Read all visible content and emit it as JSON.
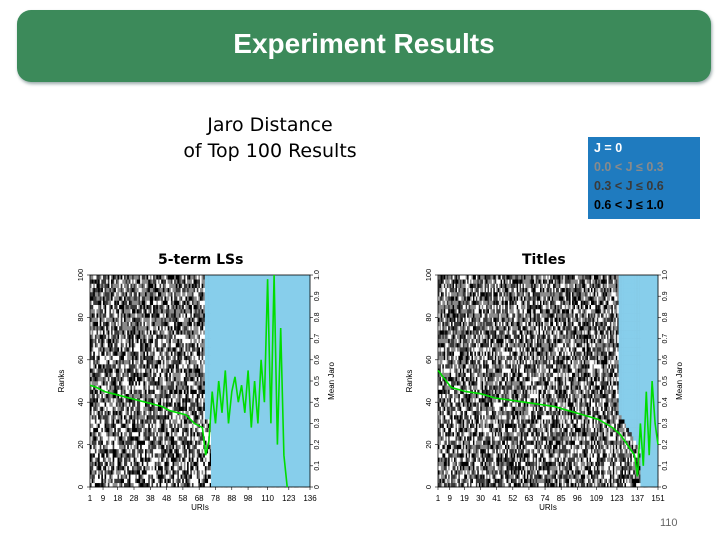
{
  "slide": {
    "title": "Experiment Results",
    "subtitle_line1": "Jaro Distance",
    "subtitle_line2": "of Top 100 Results",
    "page_number": "110"
  },
  "legend": {
    "items": [
      {
        "label": "J = 0",
        "color": "#ffffff"
      },
      {
        "label": "0.0 < J ≤ 0.3",
        "color": "#8a8a8a"
      },
      {
        "label": "0.3 < J ≤ 0.6",
        "color": "#3a3a3a"
      },
      {
        "label": "0.6 < J ≤ 1.0",
        "color": "#000000"
      }
    ],
    "background": "#1f7bbf"
  },
  "chart_data": [
    {
      "type": "heatmap",
      "title": "5-term LSs",
      "xlabel": "URIs",
      "ylabel": "Ranks",
      "y2label": "Mean Jaro",
      "x_ticks": [
        "1",
        "9",
        "18",
        "28",
        "38",
        "48",
        "58",
        "68",
        "78",
        "88",
        "98",
        "110",
        "123",
        "136"
      ],
      "y_ticks": [
        "0",
        "20",
        "40",
        "60",
        "80",
        "100"
      ],
      "y2_ticks": [
        "0",
        "0.1",
        "0.2",
        "0.3",
        "0.4",
        "0.5",
        "0.6",
        "0.7",
        "0.8",
        "0.9",
        "1.0"
      ],
      "xlim": [
        1,
        136
      ],
      "ylim": [
        0,
        100
      ],
      "y2lim": [
        0,
        1
      ],
      "results_per_uri_start_uri": 70,
      "no_results_color": "#87ceeb",
      "mean_jaro_line_color": "#00dd00",
      "mean_jaro": {
        "x": [
          1,
          5,
          10,
          15,
          20,
          25,
          30,
          35,
          40,
          45,
          50,
          55,
          60,
          65,
          70,
          72,
          74,
          76,
          78,
          80,
          82,
          84,
          86,
          88,
          90,
          92,
          94,
          96,
          98,
          100,
          102,
          104,
          106,
          108,
          110,
          112,
          114,
          116,
          118,
          120,
          122
        ],
        "y": [
          0.48,
          0.47,
          0.45,
          0.44,
          0.43,
          0.42,
          0.41,
          0.4,
          0.39,
          0.38,
          0.36,
          0.35,
          0.34,
          0.3,
          0.28,
          0.15,
          0.22,
          0.45,
          0.3,
          0.5,
          0.35,
          0.55,
          0.3,
          0.45,
          0.52,
          0.4,
          0.48,
          0.35,
          0.55,
          0.28,
          0.5,
          0.3,
          0.6,
          0.4,
          0.98,
          0.3,
          1.0,
          0.2,
          0.75,
          0.15,
          0.0
        ]
      }
    },
    {
      "type": "heatmap",
      "title": "Titles",
      "xlabel": "URIs",
      "ylabel": "Ranks",
      "y2label": "Mean Jaro",
      "x_ticks": [
        "1",
        "9",
        "19",
        "30",
        "41",
        "52",
        "63",
        "74",
        "85",
        "96",
        "109",
        "123",
        "137",
        "151"
      ],
      "y_ticks": [
        "0",
        "20",
        "40",
        "60",
        "80",
        "100"
      ],
      "y2_ticks": [
        "0",
        "0.1",
        "0.2",
        "0.3",
        "0.4",
        "0.5",
        "0.6",
        "0.7",
        "0.8",
        "0.9",
        "1.0"
      ],
      "xlim": [
        1,
        151
      ],
      "ylim": [
        0,
        100
      ],
      "y2lim": [
        0,
        1
      ],
      "no_results_color": "#87ceeb",
      "mean_jaro_line_color": "#00dd00",
      "mean_jaro": {
        "x": [
          1,
          10,
          20,
          30,
          40,
          50,
          60,
          70,
          80,
          90,
          100,
          110,
          120,
          125,
          130,
          135,
          137,
          139,
          141,
          143,
          145,
          147,
          149,
          151
        ],
        "y": [
          0.55,
          0.47,
          0.45,
          0.44,
          0.42,
          0.41,
          0.4,
          0.39,
          0.38,
          0.36,
          0.34,
          0.32,
          0.28,
          0.25,
          0.2,
          0.15,
          0.05,
          0.3,
          0.1,
          0.45,
          0.15,
          0.5,
          0.3,
          0.2
        ]
      }
    }
  ]
}
